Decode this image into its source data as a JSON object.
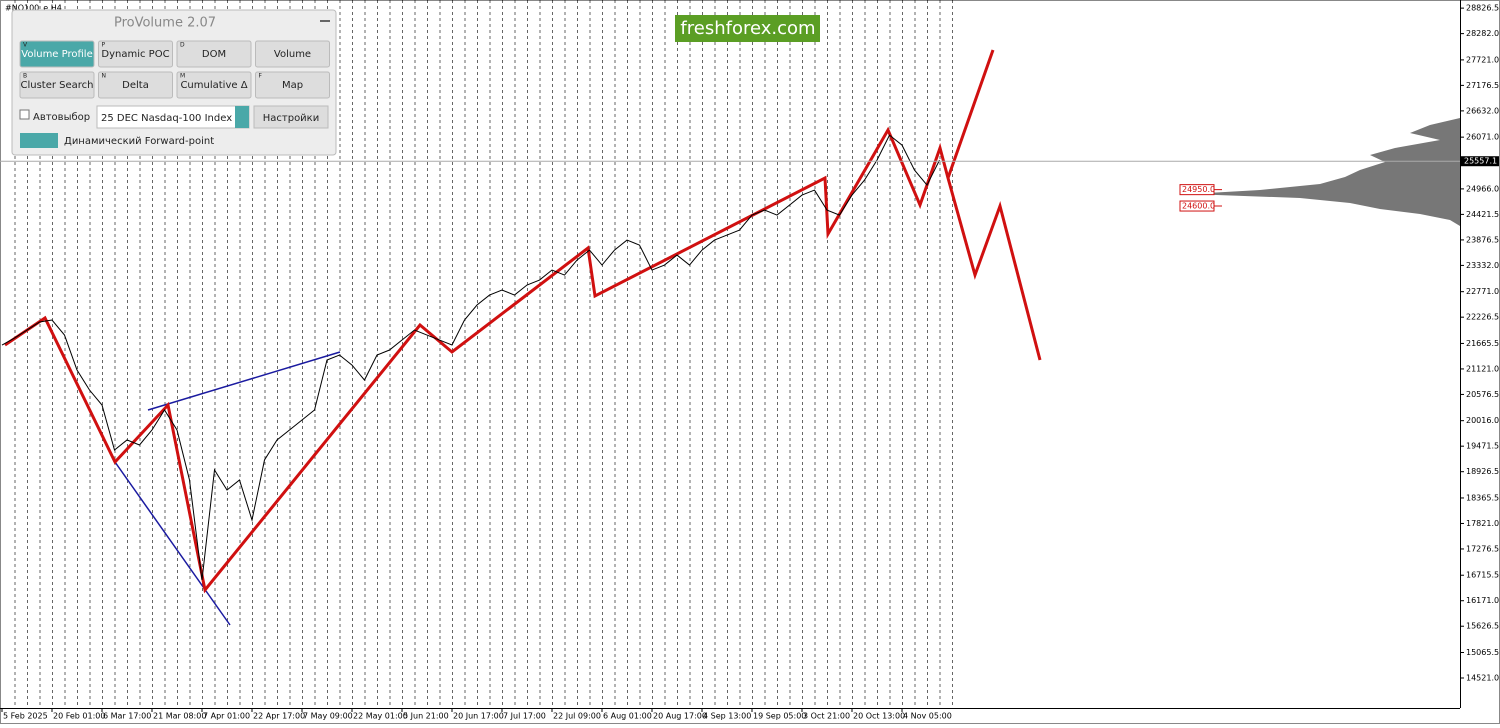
{
  "chart_data": {
    "type": "line",
    "title": "#NQ100_e,H4",
    "categories": [
      "5 Feb 2025",
      null,
      null,
      null,
      "20 Feb 01:00",
      null,
      null,
      null,
      "6 Mar 17:00",
      null,
      null,
      null,
      "21 Mar 08:00",
      null,
      null,
      null,
      "7 Apr 01:00",
      null,
      null,
      null,
      "22 Apr 17:00",
      null,
      null,
      null,
      "7 May 09:00",
      null,
      null,
      null,
      "22 May 01:00",
      null,
      null,
      null,
      "5 Jun 21:00",
      null,
      null,
      null,
      "20 Jun 17:00",
      null,
      null,
      null,
      "7 Jul 17:00",
      null,
      null,
      null,
      "22 Jul 09:00",
      null,
      null,
      null,
      "6 Aug 01:00",
      null,
      null,
      null,
      "20 Aug 17:00",
      null,
      null,
      null,
      "4 Sep 13:00",
      null,
      null,
      null,
      "19 Sep 05:00",
      null,
      null,
      null,
      "3 Oct 21:00",
      null,
      null,
      null,
      "20 Oct 13:00",
      null,
      null,
      null,
      "4 Nov 05:00",
      null,
      null,
      null
    ],
    "values": [
      21632,
      21781,
      21952,
      22123,
      22165,
      21845,
      21098,
      20671,
      20350,
      19390,
      19604,
      19497,
      19817,
      20244,
      19817,
      18749,
      16614,
      18963,
      18536,
      18749,
      17895,
      19177,
      19604,
      19817,
      20030,
      20244,
      21311,
      21418,
      21204,
      20884,
      21418,
      21525,
      21738,
      21952,
      21845,
      21738,
      21632,
      22165,
      22486,
      22699,
      22806,
      22699,
      22913,
      23019,
      23233,
      23126,
      23446,
      23660,
      23340,
      23660,
      23873,
      23766,
      23233,
      23340,
      23553,
      23340,
      23660,
      23873,
      23980,
      24087,
      24407,
      24514,
      24407,
      24620,
      24834,
      24941,
      24514,
      24407,
      24834,
      25154,
      25581,
      26115,
      25901,
      25367,
      25047,
      25581
    ],
    "color": "#000000",
    "ylim": [
      13880,
      29000
    ],
    "yticks": [
      28826.5,
      {
        "value": 28282,
        "label": "28282.0"
      },
      {
        "value": 27721,
        "label": "27721.0"
      },
      27176.5,
      {
        "value": 26632,
        "label": "26632.0"
      },
      {
        "value": 26071,
        "label": "26071.0"
      },
      {
        "value": 24966,
        "label": "24966.0"
      },
      24421.5,
      23876.5,
      {
        "value": 23332,
        "label": "23332.0"
      },
      {
        "value": 22771,
        "label": "22771.0"
      },
      22226.5,
      21665.5,
      {
        "value": 21121,
        "label": "21121.0"
      },
      20576.5,
      {
        "value": 20016,
        "label": "20016.0"
      },
      19471.5,
      18926.5,
      18365.5,
      {
        "value": 17821,
        "label": "17821.0"
      },
      17276.5,
      16715.5,
      {
        "value": 16171,
        "label": "16171.0"
      },
      15626.5,
      15065.5,
      {
        "value": 14521,
        "label": "14521.0"
      }
    ],
    "current_price": 25557.1,
    "price_labels": [
      {
        "value": 24950,
        "label": "24950.0"
      },
      {
        "value": 24600,
        "label": "24600.0"
      }
    ]
  },
  "watermark": "freshforex.com",
  "panel": {
    "title": "ProVolume 2.07",
    "buttons": [
      {
        "key": "V",
        "label": "Volume Profile"
      },
      {
        "key": "P",
        "label": "Dynamic POC"
      },
      {
        "key": "D",
        "label": "DOM"
      },
      {
        "key": "",
        "label": "Volume"
      },
      {
        "key": "B",
        "label": "Cluster Search"
      },
      {
        "key": "N",
        "label": "Delta"
      },
      {
        "key": "M",
        "label": "Cumulative Δ"
      },
      {
        "key": "F",
        "label": "Map"
      }
    ],
    "auto_select": "Автовыбор",
    "instrument": "25 DEC Nasdaq-100 Index",
    "settings": "Настройки",
    "forward_point": "Динамический Forward-point"
  }
}
